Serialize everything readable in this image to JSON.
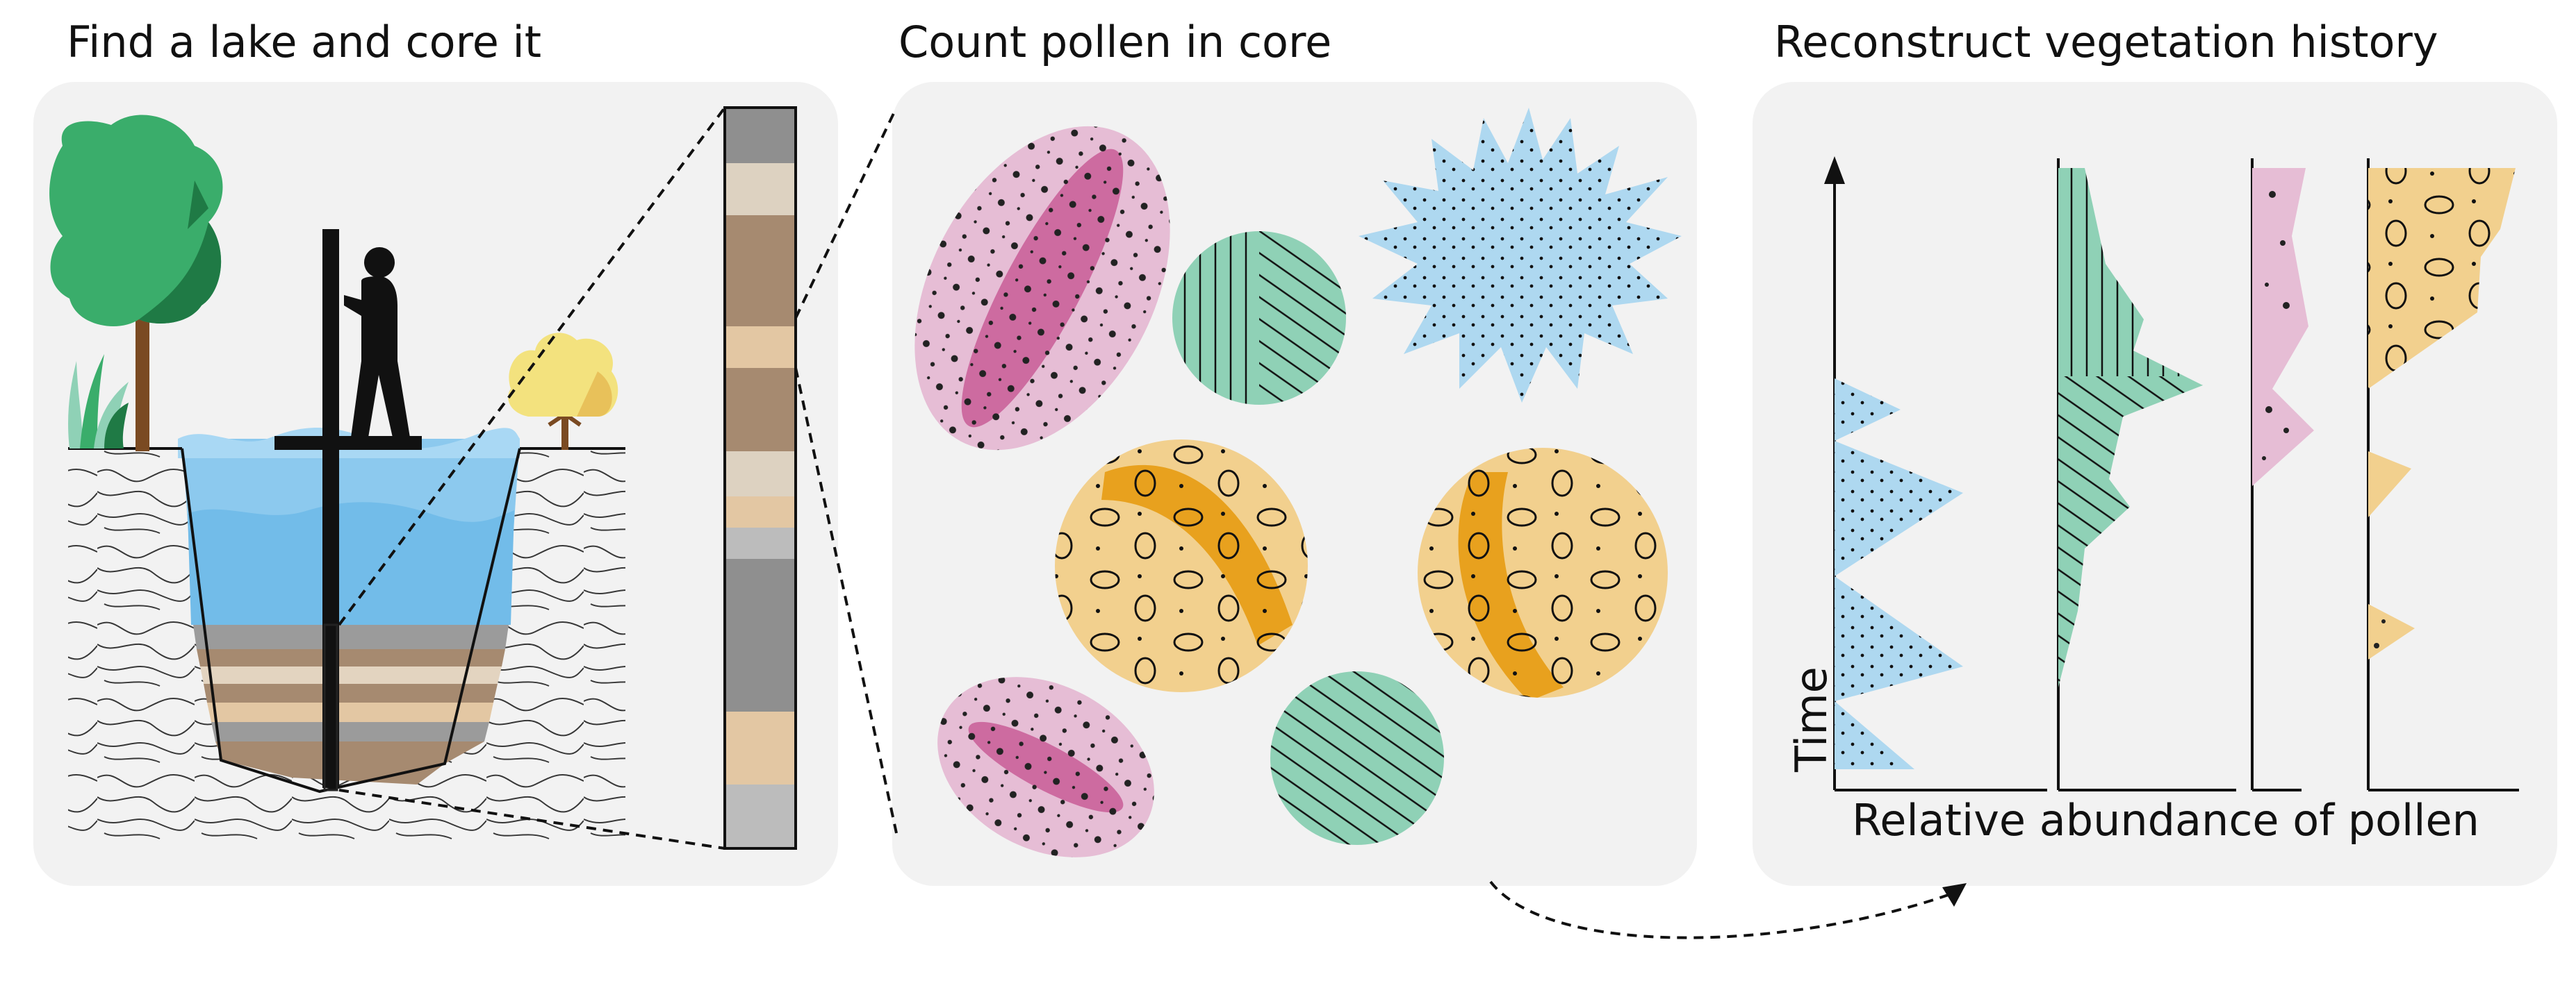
{
  "panels": [
    {
      "title": "Find a lake and core it"
    },
    {
      "title": "Count pollen in core"
    },
    {
      "title": "Reconstruct vegetation history"
    }
  ],
  "chart": {
    "ylabel": "Time",
    "xlabel": "Relative abundance of pollen"
  },
  "colors": {
    "panel_bg": "#f2f2f2",
    "water": "#8cc9ee",
    "blue_pollen": "#aed8f0",
    "green_pollen": "#8fd1b6",
    "pink_pollen": "#e6bdd5",
    "pink_core": "#cd6ba0",
    "yellow_pollen": "#f2d08e",
    "orange_band": "#e8a11e",
    "tree_green": "#3aad6b",
    "tree_dark": "#1f7a45",
    "shrub_yellow": "#f3e27e"
  },
  "icons": [
    "tree",
    "grass",
    "shrub",
    "person-with-corer",
    "sediment-core",
    "pollen-grains",
    "pollen-diagram",
    "dashed-arrow"
  ]
}
